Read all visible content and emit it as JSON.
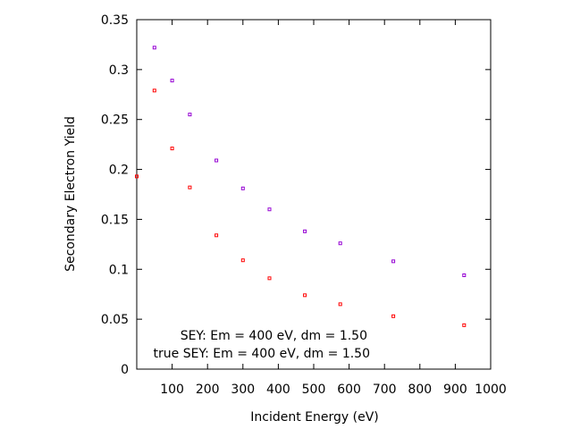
{
  "chart_data": {
    "type": "scatter",
    "title": "",
    "xlabel": "Incident Energy (eV)",
    "ylabel": "Secondary Electron Yield",
    "xlim": [
      0,
      1000
    ],
    "ylim": [
      0,
      0.35
    ],
    "xticks": [
      100,
      200,
      300,
      400,
      500,
      600,
      700,
      800,
      900,
      1000
    ],
    "xtick_labels": [
      "100",
      "200",
      "300",
      "400",
      "500",
      "600",
      "700",
      "800",
      "900",
      "1000"
    ],
    "yticks": [
      0,
      0.05,
      0.1,
      0.15,
      0.2,
      0.25,
      0.3,
      0.35
    ],
    "ytick_labels": [
      "0",
      "0.05",
      "0.1",
      "0.15",
      "0.2",
      "0.25",
      "0.3",
      "0.35"
    ],
    "grid": false,
    "legend_position": "bottom-left",
    "series": [
      {
        "name": "SEY: Em = 400 eV, dm = 1.50",
        "color": "#9400d3",
        "marker": "open-square",
        "x": [
          50,
          100,
          150,
          225,
          300,
          375,
          475,
          575,
          725,
          925
        ],
        "y": [
          0.322,
          0.289,
          0.255,
          0.209,
          0.181,
          0.16,
          0.138,
          0.126,
          0.108,
          0.094
        ]
      },
      {
        "name": "true SEY: Em = 400 eV, dm = 1.50",
        "color": "#ff0000",
        "marker": "open-square",
        "x": [
          0,
          50,
          100,
          150,
          225,
          300,
          375,
          475,
          575,
          725,
          925
        ],
        "y": [
          0.193,
          0.279,
          0.221,
          0.182,
          0.134,
          0.109,
          0.091,
          0.074,
          0.065,
          0.053,
          0.044
        ]
      }
    ]
  }
}
